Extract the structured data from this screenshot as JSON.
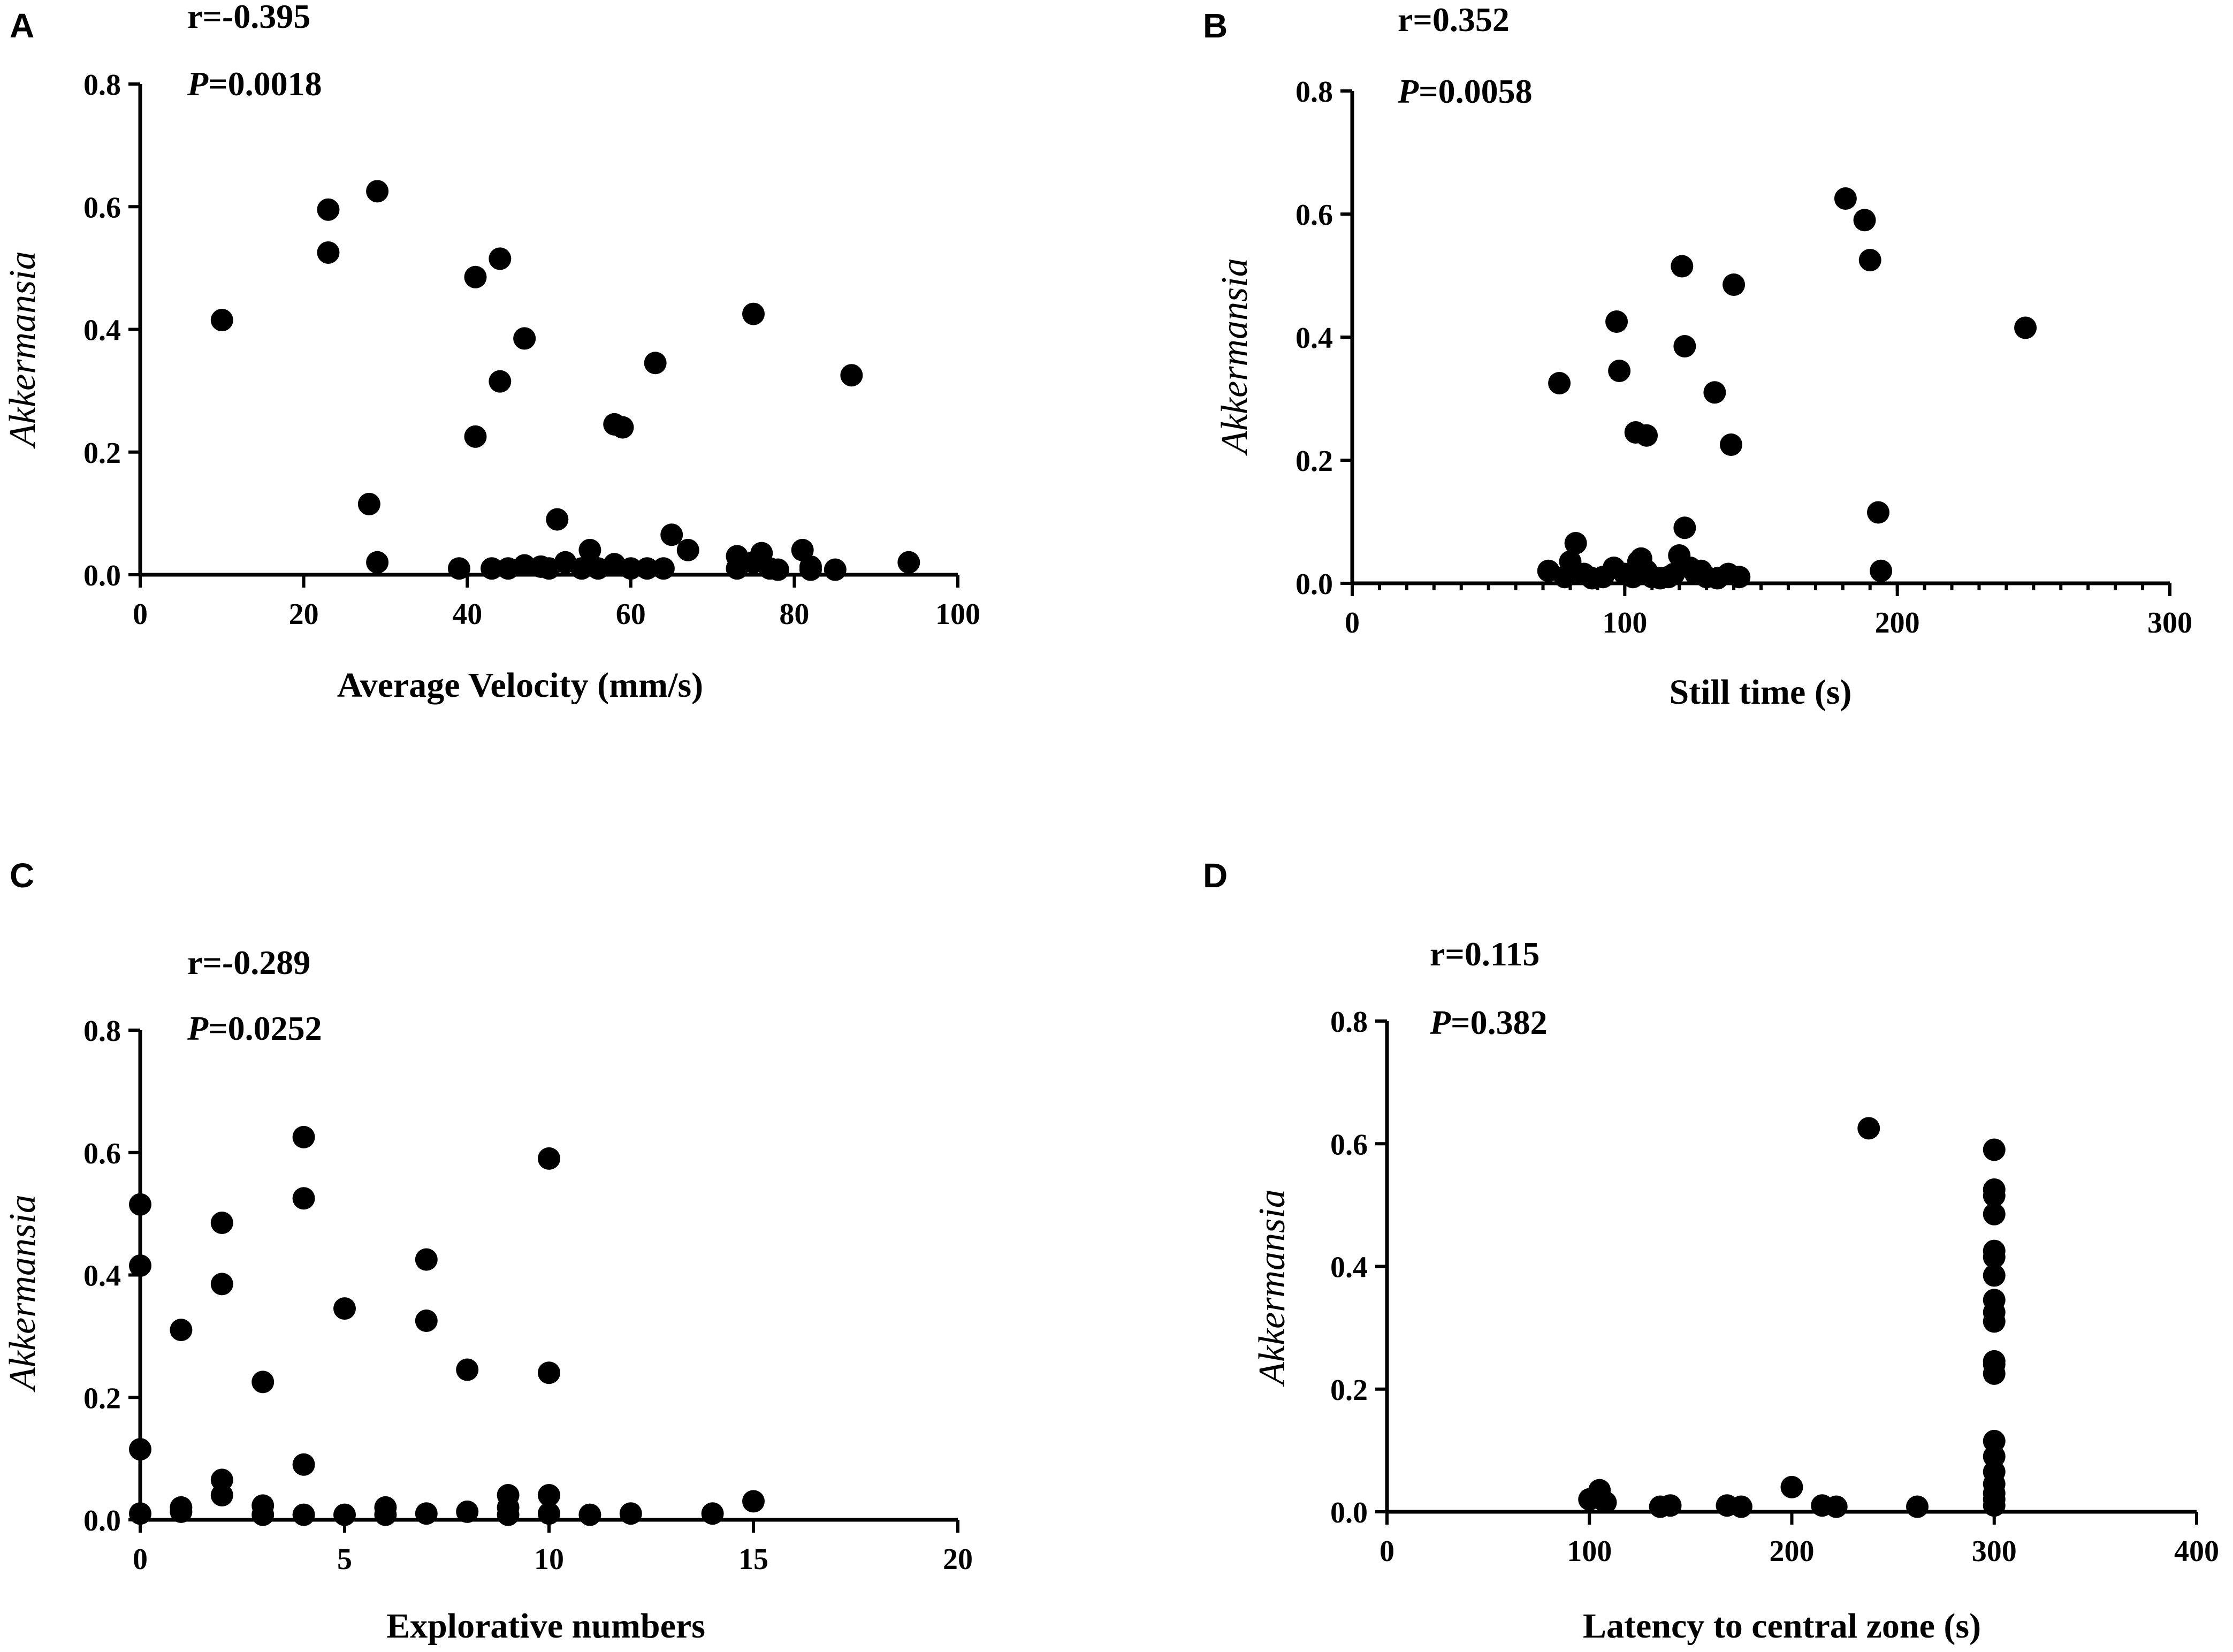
{
  "chart_data": [
    {
      "type": "scatter",
      "panel": "A",
      "xlabel": "Average Velocity (mm/s)",
      "ylabel": "Akkermansia",
      "xlim": [
        0,
        100
      ],
      "ylim": [
        0,
        0.8
      ],
      "xticks": [
        "0",
        "20",
        "40",
        "60",
        "80",
        "100"
      ],
      "yticks": [
        "0.0",
        "0.2",
        "0.4",
        "0.6",
        "0.8"
      ],
      "stats": {
        "r": "r=-0.395",
        "p_label": "P",
        "p_value": "=0.0018"
      },
      "points": [
        [
          10,
          0.41
        ],
        [
          23,
          0.52
        ],
        [
          23,
          0.59
        ],
        [
          29,
          0.62
        ],
        [
          28,
          0.11
        ],
        [
          29,
          0.015
        ],
        [
          41,
          0.48
        ],
        [
          44,
          0.51
        ],
        [
          47,
          0.38
        ],
        [
          41,
          0.22
        ],
        [
          44,
          0.31
        ],
        [
          39,
          0.005
        ],
        [
          43,
          0.005
        ],
        [
          45,
          0.005
        ],
        [
          47,
          0.01
        ],
        [
          49,
          0.008
        ],
        [
          50,
          0.005
        ],
        [
          51,
          0.085
        ],
        [
          52,
          0.015
        ],
        [
          54,
          0.005
        ],
        [
          55,
          0.035
        ],
        [
          56,
          0.005
        ],
        [
          58,
          0.012
        ],
        [
          58,
          0.24
        ],
        [
          59,
          0.235
        ],
        [
          60,
          0.005
        ],
        [
          62,
          0.005
        ],
        [
          63,
          0.34
        ],
        [
          64,
          0.005
        ],
        [
          65,
          0.06
        ],
        [
          67,
          0.035
        ],
        [
          73,
          0.025
        ],
        [
          73,
          0.005
        ],
        [
          75,
          0.015
        ],
        [
          75,
          0.42
        ],
        [
          76,
          0.03
        ],
        [
          77,
          0.005
        ],
        [
          78,
          0.003
        ],
        [
          81,
          0.035
        ],
        [
          82,
          0.008
        ],
        [
          82,
          0.003
        ],
        [
          85,
          0.003
        ],
        [
          87,
          0.32
        ],
        [
          94,
          0.015
        ]
      ]
    },
    {
      "type": "scatter",
      "panel": "B",
      "xlabel": "Still time (s)",
      "ylabel": "Akkermansia",
      "xlim": [
        0,
        300
      ],
      "ylim": [
        0,
        0.8
      ],
      "xticks": [
        "0",
        "100",
        "200",
        "300"
      ],
      "yticks": [
        "0.0",
        "0.2",
        "0.4",
        "0.6",
        "0.8"
      ],
      "stats": {
        "r": "r=0.352",
        "p_label": "P",
        "p_value": "=0.0058"
      },
      "points": [
        [
          76,
          0.32
        ],
        [
          97,
          0.42
        ],
        [
          98,
          0.34
        ],
        [
          104,
          0.24
        ],
        [
          108,
          0.235
        ],
        [
          121,
          0.51
        ],
        [
          122,
          0.38
        ],
        [
          133,
          0.305
        ],
        [
          140,
          0.48
        ],
        [
          139,
          0.22
        ],
        [
          181,
          0.62
        ],
        [
          188,
          0.585
        ],
        [
          190,
          0.52
        ],
        [
          247,
          0.41
        ],
        [
          193,
          0.11
        ],
        [
          194,
          0.015
        ],
        [
          122,
          0.085
        ],
        [
          82,
          0.06
        ],
        [
          72,
          0.015
        ],
        [
          78,
          0.005
        ],
        [
          80,
          0.03
        ],
        [
          85,
          0.01
        ],
        [
          88,
          0.003
        ],
        [
          92,
          0.005
        ],
        [
          96,
          0.02
        ],
        [
          100,
          0.01
        ],
        [
          103,
          0.005
        ],
        [
          105,
          0.03
        ],
        [
          106,
          0.035
        ],
        [
          108,
          0.015
        ],
        [
          110,
          0.005
        ],
        [
          113,
          0.003
        ],
        [
          118,
          0.01
        ],
        [
          120,
          0.04
        ],
        [
          124,
          0.02
        ],
        [
          126,
          0.01
        ],
        [
          130,
          0.005
        ],
        [
          134,
          0.003
        ],
        [
          138,
          0.01
        ],
        [
          142,
          0.005
        ],
        [
          128,
          0.015
        ],
        [
          116,
          0.005
        ]
      ]
    },
    {
      "type": "scatter",
      "panel": "C",
      "xlabel": "Explorative numbers",
      "ylabel": "Akkermansia",
      "xlim": [
        0,
        20
      ],
      "ylim": [
        0,
        0.8
      ],
      "xticks": [
        "0",
        "5",
        "10",
        "15",
        "20"
      ],
      "yticks": [
        "0.0",
        "0.2",
        "0.4",
        "0.6",
        "0.8"
      ],
      "stats": {
        "r": "r=-0.289",
        "p_label": "P",
        "p_value": "=0.0252"
      },
      "points": [
        [
          0,
          0.51
        ],
        [
          0,
          0.41
        ],
        [
          0,
          0.11
        ],
        [
          0,
          0.005
        ],
        [
          1,
          0.305
        ],
        [
          1,
          0.015
        ],
        [
          1,
          0.008
        ],
        [
          2,
          0.48
        ],
        [
          2,
          0.38
        ],
        [
          2,
          0.06
        ],
        [
          2,
          0.035
        ],
        [
          3,
          0.22
        ],
        [
          3,
          0.018
        ],
        [
          3,
          0.003
        ],
        [
          4,
          0.62
        ],
        [
          4,
          0.52
        ],
        [
          4,
          0.085
        ],
        [
          4,
          0.003
        ],
        [
          5,
          0.34
        ],
        [
          5,
          0.003
        ],
        [
          6,
          0.015
        ],
        [
          6,
          0.003
        ],
        [
          7,
          0.42
        ],
        [
          7,
          0.32
        ],
        [
          7,
          0.005
        ],
        [
          8,
          0.24
        ],
        [
          8,
          0.008
        ],
        [
          9,
          0.035
        ],
        [
          9,
          0.015
        ],
        [
          9,
          0.003
        ],
        [
          10,
          0.585
        ],
        [
          10,
          0.235
        ],
        [
          10,
          0.035
        ],
        [
          10,
          0.005
        ],
        [
          11,
          0.003
        ],
        [
          12,
          0.005
        ],
        [
          14,
          0.005
        ],
        [
          15,
          0.025
        ]
      ]
    },
    {
      "type": "scatter",
      "panel": "D",
      "xlabel": "Latency to central zone (s)",
      "ylabel": "Akkermansia",
      "xlim": [
        0,
        400
      ],
      "ylim": [
        0,
        0.8
      ],
      "xticks": [
        "0",
        "100",
        "200",
        "300",
        "400"
      ],
      "yticks": [
        "0.0",
        "0.2",
        "0.4",
        "0.6",
        "0.8"
      ],
      "stats": {
        "r": "r=0.115",
        "p_label": "P",
        "p_value": "=0.382"
      },
      "points": [
        [
          100,
          0.015
        ],
        [
          105,
          0.03
        ],
        [
          108,
          0.01
        ],
        [
          135,
          0.003
        ],
        [
          140,
          0.005
        ],
        [
          168,
          0.005
        ],
        [
          175,
          0.003
        ],
        [
          200,
          0.035
        ],
        [
          215,
          0.005
        ],
        [
          222,
          0.003
        ],
        [
          238,
          0.62
        ],
        [
          262,
          0.003
        ],
        [
          300,
          0.585
        ],
        [
          300,
          0.52
        ],
        [
          300,
          0.51
        ],
        [
          300,
          0.48
        ],
        [
          300,
          0.42
        ],
        [
          300,
          0.41
        ],
        [
          300,
          0.38
        ],
        [
          300,
          0.34
        ],
        [
          300,
          0.32
        ],
        [
          300,
          0.305
        ],
        [
          300,
          0.24
        ],
        [
          300,
          0.235
        ],
        [
          300,
          0.22
        ],
        [
          300,
          0.11
        ],
        [
          300,
          0.085
        ],
        [
          300,
          0.06
        ],
        [
          300,
          0.04
        ],
        [
          300,
          0.025
        ],
        [
          300,
          0.015
        ],
        [
          300,
          0.005
        ]
      ]
    }
  ]
}
